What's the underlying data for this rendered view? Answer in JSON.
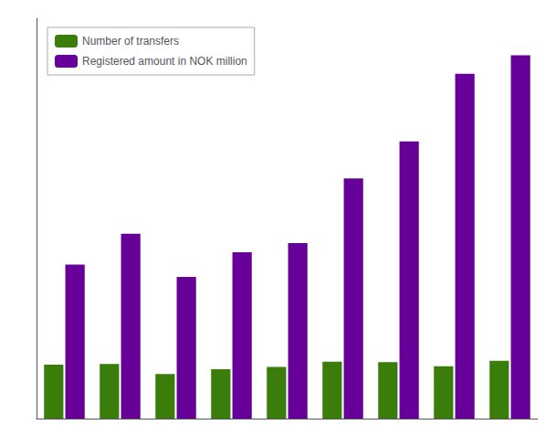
{
  "chart_data": {
    "type": "bar",
    "categories": [
      null,
      null,
      null,
      null,
      null,
      null,
      null,
      null,
      null
    ],
    "series": [
      {
        "name": "Number of transfers",
        "color": "#3a7d0a",
        "values": [
          17500,
          17700,
          14500,
          16000,
          16800,
          18500,
          18300,
          17000,
          18800
        ]
      },
      {
        "name": "Registered amount in NOK million",
        "color": "#660099",
        "values": [
          50000,
          60000,
          46000,
          54000,
          57000,
          78000,
          90000,
          112000,
          118000
        ]
      }
    ],
    "ylim": [
      0,
      130000
    ],
    "grid": false,
    "tick_labels": false,
    "legend": "upper left"
  }
}
